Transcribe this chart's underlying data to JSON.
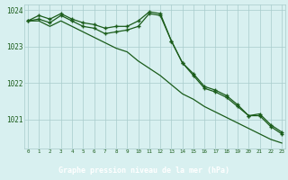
{
  "hours": [
    0,
    1,
    2,
    3,
    4,
    5,
    6,
    7,
    8,
    9,
    10,
    11,
    12,
    13,
    14,
    15,
    16,
    17,
    18,
    19,
    20,
    21,
    22,
    23
  ],
  "line1": [
    1023.7,
    1023.85,
    1023.75,
    1023.9,
    1023.75,
    1023.65,
    1023.6,
    1023.5,
    1023.55,
    1023.55,
    1023.7,
    1023.95,
    1023.9,
    1023.15,
    1022.55,
    1022.25,
    1021.9,
    1021.8,
    1021.65,
    1021.4,
    1021.1,
    1021.15,
    1020.85,
    1020.65
  ],
  "line2": [
    1023.7,
    1023.75,
    1023.65,
    1023.85,
    1023.7,
    1023.55,
    1023.5,
    1023.35,
    1023.4,
    1023.45,
    1023.55,
    1023.9,
    1023.85,
    1023.15,
    1022.55,
    1022.2,
    1021.85,
    1021.75,
    1021.6,
    1021.35,
    1021.1,
    1021.1,
    1020.8,
    1020.6
  ],
  "line3": [
    1023.7,
    1023.7,
    1023.55,
    1023.7,
    1023.55,
    1023.4,
    1023.25,
    1023.1,
    1022.95,
    1022.85,
    1022.6,
    1022.4,
    1022.2,
    1021.95,
    1021.7,
    1021.55,
    1021.35,
    1021.2,
    1021.05,
    1020.9,
    1020.75,
    1020.6,
    1020.45,
    1020.35
  ],
  "bg_color": "#d8f0f0",
  "grid_color": "#a8cccc",
  "line_color": "#1a5c1a",
  "xlabel": "Graphe pression niveau de la mer (hPa)",
  "xlabel_bg": "#1a6b1a",
  "xlabel_color": "#ffffff",
  "ylim": [
    1020.2,
    1024.15
  ],
  "yticks": [
    1021,
    1022,
    1023,
    1024
  ],
  "xticks": [
    0,
    1,
    2,
    3,
    4,
    5,
    6,
    7,
    8,
    9,
    10,
    11,
    12,
    13,
    14,
    15,
    16,
    17,
    18,
    19,
    20,
    21,
    22,
    23
  ]
}
